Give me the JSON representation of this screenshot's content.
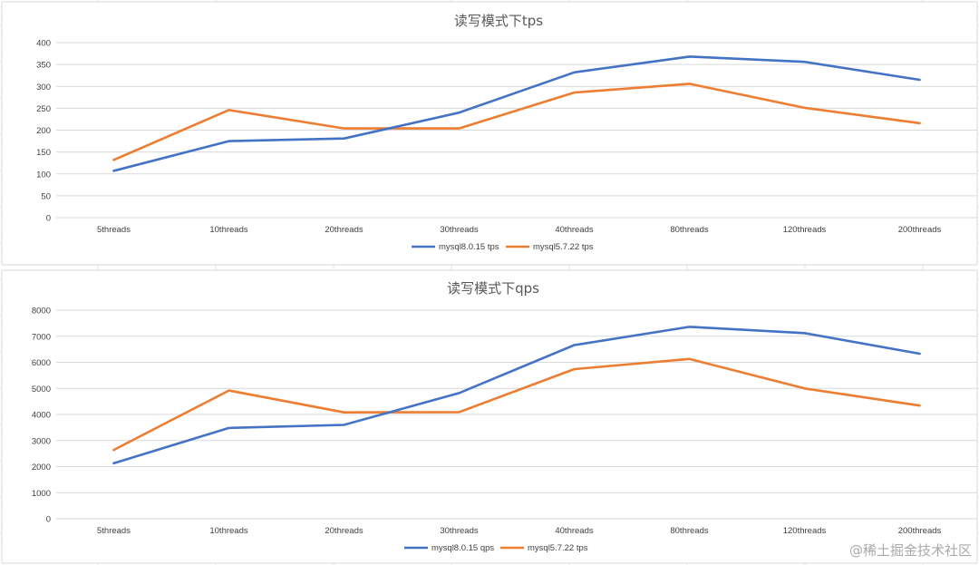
{
  "colors": {
    "series_blue": "#4472c4",
    "series_orange": "#ed7d31",
    "gridline": "#d9d9d9",
    "text": "#404040",
    "sheet_grid": "#e6e6e6"
  },
  "watermark": "@稀土掘金技术社区",
  "chart_data": [
    {
      "type": "line",
      "title": "读写模式下tps",
      "categories": [
        "5threads",
        "10threads",
        "20threads",
        "30threads",
        "40threads",
        "80threads",
        "120threads",
        "200threads"
      ],
      "series": [
        {
          "name": "mysql8.0.15 tps",
          "color": "#4472c4",
          "values": [
            107,
            175,
            181,
            240,
            332,
            368,
            356,
            315
          ]
        },
        {
          "name": "mysql5.7.22 tps",
          "color": "#ed7d31",
          "values": [
            132,
            246,
            204,
            204,
            286,
            306,
            251,
            216
          ]
        }
      ],
      "ylim": [
        0,
        400
      ],
      "yticks": [
        0,
        50,
        100,
        150,
        200,
        250,
        300,
        350,
        400
      ],
      "grid": true,
      "legend": "bottom"
    },
    {
      "type": "line",
      "title": "读写模式下qps",
      "categories": [
        "5threads",
        "10threads",
        "20threads",
        "30threads",
        "40threads",
        "80threads",
        "120threads",
        "200threads"
      ],
      "series": [
        {
          "name": "mysql8.0.15 qps",
          "color": "#4472c4",
          "values": [
            2130,
            3480,
            3600,
            4820,
            6660,
            7360,
            7120,
            6330
          ]
        },
        {
          "name": "mysql5.7.22 tps",
          "color": "#ed7d31",
          "values": [
            2640,
            4920,
            4080,
            4090,
            5740,
            6130,
            5000,
            4340
          ]
        }
      ],
      "ylim": [
        0,
        8000
      ],
      "yticks": [
        0,
        1000,
        2000,
        3000,
        4000,
        5000,
        6000,
        7000,
        8000
      ],
      "grid": true,
      "legend": "bottom"
    }
  ]
}
